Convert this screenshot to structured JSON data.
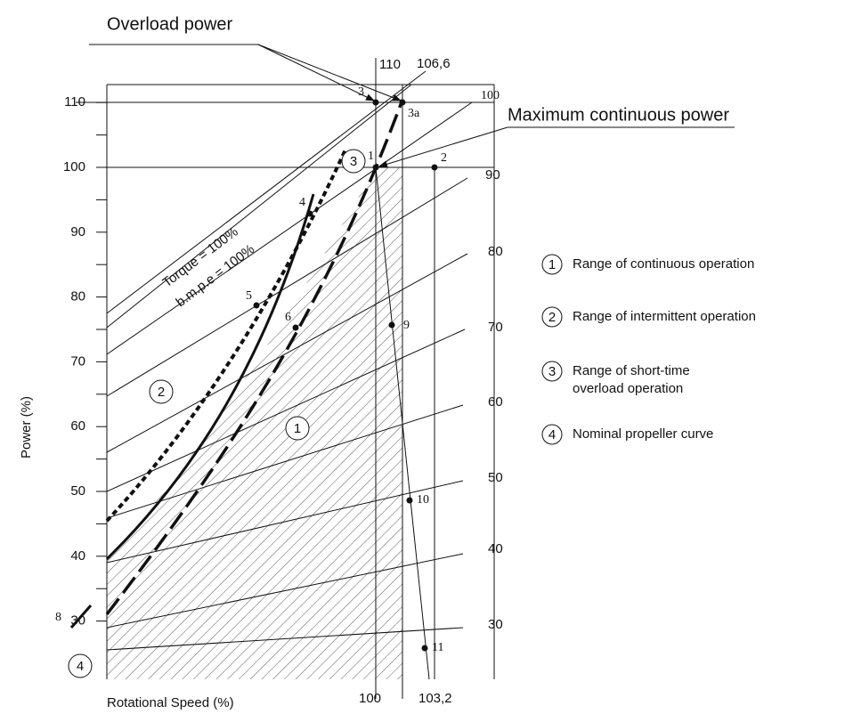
{
  "annotations": {
    "overload": "Overload power",
    "max_continuous": "Maximum continuous power"
  },
  "y_axis": {
    "label": "Power (%)",
    "ticks": [
      30,
      40,
      50,
      60,
      70,
      80,
      90,
      100,
      110
    ]
  },
  "x_axis": {
    "label": "Rotational Speed (%)",
    "top_labels": [
      "110",
      "106,6"
    ],
    "bottom_labels": [
      "100",
      "103,2"
    ]
  },
  "right_labels": [
    100,
    90,
    80,
    70,
    60,
    50,
    40,
    30
  ],
  "line_labels": [
    "Torque = 100%",
    "b.m.p.e = 100%"
  ],
  "points": [
    "1",
    "2",
    "3",
    "3a",
    "4",
    "5",
    "6",
    "8",
    "9",
    "10",
    "11"
  ],
  "ranges": [
    {
      "number": "1",
      "label": [
        "Range of continuous operation"
      ]
    },
    {
      "number": "2",
      "label": [
        "Range of intermittent operation"
      ]
    },
    {
      "number": "3",
      "label": [
        "Range of short-time",
        "overload operation"
      ]
    },
    {
      "number": "4",
      "label": [
        "Nominal propeller curve"
      ]
    }
  ]
}
